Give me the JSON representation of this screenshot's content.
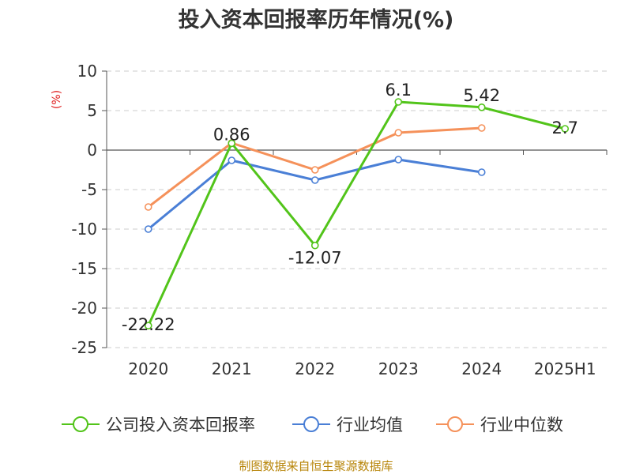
{
  "chart_data": {
    "type": "line",
    "title": "投入资本回报率历年情况(%)",
    "ylabel": "(%)",
    "categories": [
      "2020",
      "2021",
      "2022",
      "2023",
      "2024",
      "2025H1"
    ],
    "ylim": [
      -25,
      10
    ],
    "yticks": [
      10,
      5,
      0,
      -5,
      -10,
      -15,
      -20,
      -25
    ],
    "grid": true,
    "legend_position": "bottom",
    "series": [
      {
        "name": "公司投入资本回报率",
        "color": "#52c41a",
        "values": [
          -22.22,
          0.86,
          -12.07,
          6.1,
          5.42,
          2.7
        ],
        "labels": [
          "-22.22",
          "0.86",
          "-12.07",
          "6.1",
          "5.42",
          "2.7"
        ]
      },
      {
        "name": "行业均值",
        "color": "#4a7fd6",
        "values": [
          -10.0,
          -1.3,
          -3.8,
          -1.2,
          -2.8,
          null
        ]
      },
      {
        "name": "行业中位数",
        "color": "#f5915a",
        "values": [
          -7.2,
          0.9,
          -2.5,
          2.2,
          2.8,
          null
        ]
      }
    ]
  },
  "footer": {
    "source": "制图数据来自恒生聚源数据库"
  }
}
